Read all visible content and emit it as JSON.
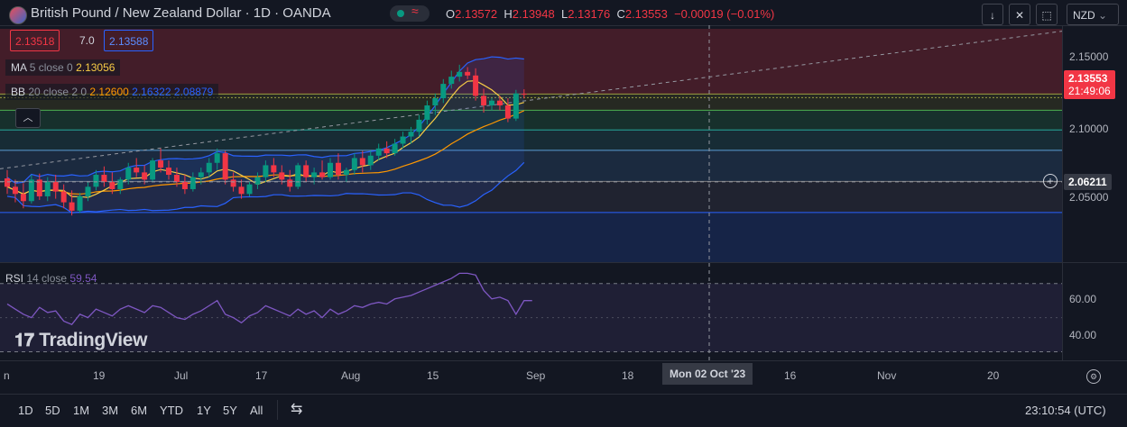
{
  "header": {
    "title": "British Pound / New Zealand Dollar · 1D · OANDA",
    "open_label": "O",
    "open": "2.13572",
    "high_label": "H",
    "high": "2.13948",
    "low_label": "L",
    "low": "2.13176",
    "close_label": "C",
    "close": "2.13553",
    "change": "−0.00019 (−0.01%)"
  },
  "toolbar": {
    "currency": "NZD",
    "currency_chevron": "⌄"
  },
  "trade": {
    "sell": "2.13518",
    "spread": "7.0",
    "buy": "2.13588"
  },
  "indicators": {
    "ma": {
      "name": "MA",
      "params": "5 close 0",
      "value": "2.13056"
    },
    "bb": {
      "name": "BB",
      "params": "20 close 2 0",
      "basis": "2.12600",
      "upper": "2.16322",
      "lower": "2.08879"
    },
    "rsi": {
      "name": "RSI",
      "params": "14 close",
      "value": "59.54"
    }
  },
  "price_axis": {
    "ticks": [
      "2.15000",
      "2.10000",
      "2.05000"
    ],
    "current_price": "2.13553",
    "countdown": "21:49:06",
    "crosshair_price": "2.06211"
  },
  "rsi_axis": {
    "ticks": [
      "60.00",
      "40.00"
    ]
  },
  "x_axis": {
    "ticks": [
      "n",
      "19",
      "Jul",
      "17",
      "Aug",
      "15",
      "Sep",
      "18",
      "16",
      "Nov",
      "20"
    ],
    "crosshair_date": "Mon 02 Oct '23"
  },
  "ranges": [
    "1D",
    "5D",
    "1M",
    "3M",
    "6M",
    "YTD",
    "1Y",
    "5Y",
    "All"
  ],
  "clock": "23:10:54 (UTC)",
  "brand": "TradingView",
  "colors": {
    "up": "#089981",
    "down": "#f23645",
    "ma": "#f7cc45",
    "bb_upper": "#2962ff",
    "bb_basis": "#ff9800",
    "rsi": "#7e57c2",
    "bg": "#131722"
  },
  "chart_data": {
    "type": "candlestick",
    "y_range": [
      1.995,
      2.19
    ],
    "candles": [
      {
        "o": 2.065,
        "h": 2.072,
        "l": 2.052,
        "c": 2.058
      },
      {
        "o": 2.058,
        "h": 2.064,
        "l": 2.045,
        "c": 2.052
      },
      {
        "o": 2.052,
        "h": 2.061,
        "l": 2.04,
        "c": 2.046
      },
      {
        "o": 2.046,
        "h": 2.068,
        "l": 2.044,
        "c": 2.064
      },
      {
        "o": 2.064,
        "h": 2.069,
        "l": 2.047,
        "c": 2.05
      },
      {
        "o": 2.05,
        "h": 2.066,
        "l": 2.046,
        "c": 2.062
      },
      {
        "o": 2.062,
        "h": 2.068,
        "l": 2.048,
        "c": 2.054
      },
      {
        "o": 2.054,
        "h": 2.06,
        "l": 2.04,
        "c": 2.045
      },
      {
        "o": 2.045,
        "h": 2.055,
        "l": 2.034,
        "c": 2.038
      },
      {
        "o": 2.038,
        "h": 2.053,
        "l": 2.036,
        "c": 2.05
      },
      {
        "o": 2.05,
        "h": 2.062,
        "l": 2.046,
        "c": 2.058
      },
      {
        "o": 2.058,
        "h": 2.072,
        "l": 2.055,
        "c": 2.068
      },
      {
        "o": 2.068,
        "h": 2.075,
        "l": 2.058,
        "c": 2.062
      },
      {
        "o": 2.062,
        "h": 2.07,
        "l": 2.052,
        "c": 2.056
      },
      {
        "o": 2.056,
        "h": 2.066,
        "l": 2.052,
        "c": 2.064
      },
      {
        "o": 2.064,
        "h": 2.078,
        "l": 2.06,
        "c": 2.074
      },
      {
        "o": 2.074,
        "h": 2.082,
        "l": 2.066,
        "c": 2.07
      },
      {
        "o": 2.07,
        "h": 2.076,
        "l": 2.06,
        "c": 2.064
      },
      {
        "o": 2.064,
        "h": 2.082,
        "l": 2.062,
        "c": 2.08
      },
      {
        "o": 2.08,
        "h": 2.09,
        "l": 2.07,
        "c": 2.074
      },
      {
        "o": 2.074,
        "h": 2.08,
        "l": 2.064,
        "c": 2.068
      },
      {
        "o": 2.068,
        "h": 2.074,
        "l": 2.058,
        "c": 2.062
      },
      {
        "o": 2.062,
        "h": 2.068,
        "l": 2.052,
        "c": 2.056
      },
      {
        "o": 2.056,
        "h": 2.07,
        "l": 2.054,
        "c": 2.066
      },
      {
        "o": 2.066,
        "h": 2.074,
        "l": 2.06,
        "c": 2.07
      },
      {
        "o": 2.07,
        "h": 2.082,
        "l": 2.066,
        "c": 2.078
      },
      {
        "o": 2.078,
        "h": 2.09,
        "l": 2.072,
        "c": 2.086
      },
      {
        "o": 2.086,
        "h": 2.088,
        "l": 2.06,
        "c": 2.064
      },
      {
        "o": 2.064,
        "h": 2.07,
        "l": 2.054,
        "c": 2.058
      },
      {
        "o": 2.058,
        "h": 2.064,
        "l": 2.048,
        "c": 2.052
      },
      {
        "o": 2.052,
        "h": 2.062,
        "l": 2.05,
        "c": 2.06
      },
      {
        "o": 2.06,
        "h": 2.07,
        "l": 2.056,
        "c": 2.066
      },
      {
        "o": 2.066,
        "h": 2.08,
        "l": 2.062,
        "c": 2.076
      },
      {
        "o": 2.076,
        "h": 2.082,
        "l": 2.066,
        "c": 2.07
      },
      {
        "o": 2.07,
        "h": 2.076,
        "l": 2.06,
        "c": 2.064
      },
      {
        "o": 2.064,
        "h": 2.072,
        "l": 2.054,
        "c": 2.058
      },
      {
        "o": 2.058,
        "h": 2.078,
        "l": 2.056,
        "c": 2.076
      },
      {
        "o": 2.076,
        "h": 2.08,
        "l": 2.062,
        "c": 2.066
      },
      {
        "o": 2.066,
        "h": 2.074,
        "l": 2.06,
        "c": 2.07
      },
      {
        "o": 2.07,
        "h": 2.08,
        "l": 2.064,
        "c": 2.066
      },
      {
        "o": 2.066,
        "h": 2.082,
        "l": 2.064,
        "c": 2.078
      },
      {
        "o": 2.078,
        "h": 2.086,
        "l": 2.064,
        "c": 2.068
      },
      {
        "o": 2.068,
        "h": 2.074,
        "l": 2.062,
        "c": 2.072
      },
      {
        "o": 2.072,
        "h": 2.086,
        "l": 2.068,
        "c": 2.082
      },
      {
        "o": 2.082,
        "h": 2.088,
        "l": 2.07,
        "c": 2.076
      },
      {
        "o": 2.076,
        "h": 2.088,
        "l": 2.072,
        "c": 2.084
      },
      {
        "o": 2.084,
        "h": 2.094,
        "l": 2.08,
        "c": 2.09
      },
      {
        "o": 2.09,
        "h": 2.096,
        "l": 2.082,
        "c": 2.086
      },
      {
        "o": 2.086,
        "h": 2.098,
        "l": 2.084,
        "c": 2.094
      },
      {
        "o": 2.094,
        "h": 2.104,
        "l": 2.09,
        "c": 2.1
      },
      {
        "o": 2.1,
        "h": 2.108,
        "l": 2.094,
        "c": 2.104
      },
      {
        "o": 2.104,
        "h": 2.118,
        "l": 2.1,
        "c": 2.114
      },
      {
        "o": 2.114,
        "h": 2.13,
        "l": 2.11,
        "c": 2.126
      },
      {
        "o": 2.126,
        "h": 2.136,
        "l": 2.118,
        "c": 2.132
      },
      {
        "o": 2.132,
        "h": 2.148,
        "l": 2.128,
        "c": 2.144
      },
      {
        "o": 2.144,
        "h": 2.155,
        "l": 2.14,
        "c": 2.15
      },
      {
        "o": 2.15,
        "h": 2.16,
        "l": 2.146,
        "c": 2.154
      },
      {
        "o": 2.154,
        "h": 2.158,
        "l": 2.148,
        "c": 2.151
      },
      {
        "o": 2.151,
        "h": 2.157,
        "l": 2.13,
        "c": 2.134
      },
      {
        "o": 2.134,
        "h": 2.14,
        "l": 2.12,
        "c": 2.126
      },
      {
        "o": 2.126,
        "h": 2.132,
        "l": 2.122,
        "c": 2.13
      },
      {
        "o": 2.13,
        "h": 2.134,
        "l": 2.122,
        "c": 2.126
      },
      {
        "o": 2.126,
        "h": 2.132,
        "l": 2.112,
        "c": 2.115
      },
      {
        "o": 2.115,
        "h": 2.139,
        "l": 2.113,
        "c": 2.136
      },
      {
        "o": 2.13572,
        "h": 2.13948,
        "l": 2.13176,
        "c": 2.13553
      }
    ],
    "rsi": [
      58,
      55,
      52,
      50,
      56,
      53,
      54,
      48,
      46,
      52,
      50,
      55,
      53,
      51,
      55,
      57,
      55,
      53,
      57,
      56,
      53,
      50,
      49,
      52,
      54,
      57,
      60,
      52,
      50,
      47,
      51,
      53,
      57,
      55,
      53,
      51,
      55,
      52,
      54,
      50,
      55,
      52,
      54,
      57,
      56,
      58,
      59,
      58,
      61,
      62,
      63,
      65,
      67,
      69,
      71,
      73,
      76,
      76,
      75,
      66,
      61,
      62,
      60,
      52,
      60,
      60
    ],
    "rsi_range": [
      25,
      82
    ]
  }
}
